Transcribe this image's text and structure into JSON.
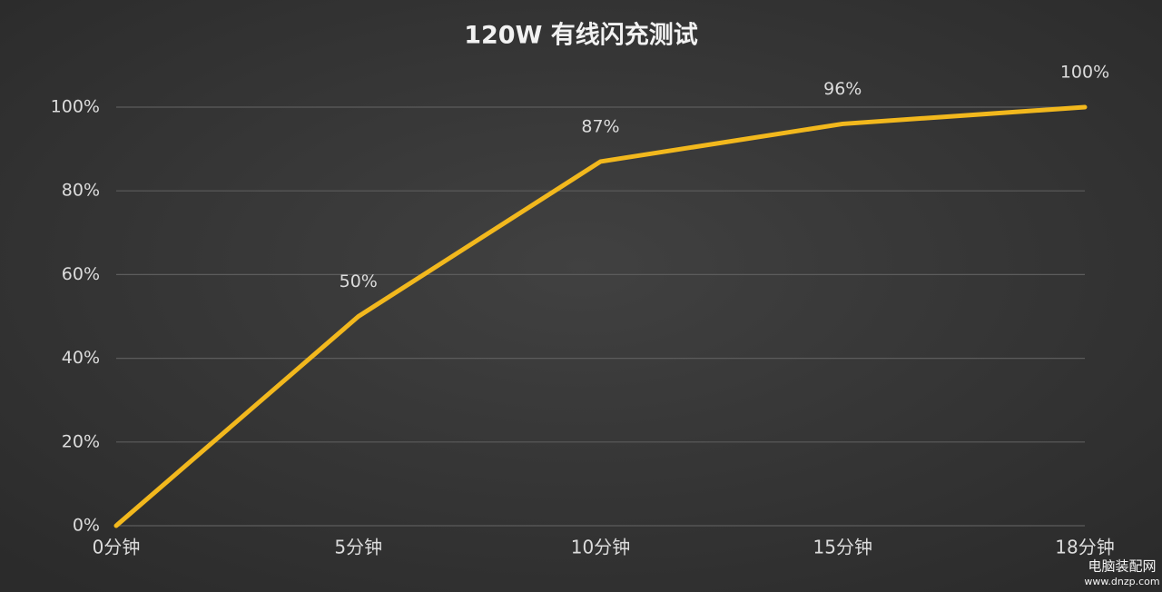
{
  "chart_data": {
    "type": "line",
    "title": "120W 有线闪充测试",
    "categories": [
      "0分钟",
      "5分钟",
      "10分钟",
      "15分钟",
      "18分钟"
    ],
    "series": [
      {
        "color": "#f2b81d",
        "values": [
          0,
          50,
          87,
          96,
          100
        ],
        "value_labels": [
          null,
          "50%",
          "87%",
          "96%",
          "100%"
        ]
      }
    ],
    "ylim": [
      0,
      100
    ],
    "yticks": [
      {
        "value": 0,
        "label": "0%"
      },
      {
        "value": 20,
        "label": "20%"
      },
      {
        "value": 40,
        "label": "40%"
      },
      {
        "value": 60,
        "label": "60%"
      },
      {
        "value": 80,
        "label": "80%"
      },
      {
        "value": 100,
        "label": "100%"
      }
    ],
    "grid": true,
    "watermark": [
      "电脑装配网",
      "www.dnzp.com"
    ]
  }
}
